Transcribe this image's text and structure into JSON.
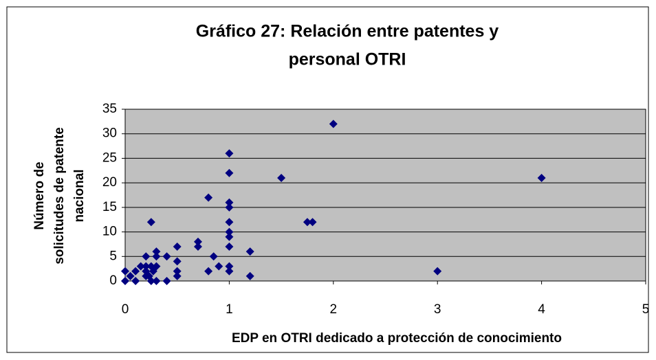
{
  "chart_data": {
    "type": "scatter",
    "title": [
      "Gráfico 27: Relación entre patentes y",
      "personal OTRI"
    ],
    "xlabel": "EDP en OTRI dedicado a protección de conocimiento",
    "ylabel": [
      "Número de",
      "solicitudes de patente",
      "nacional"
    ],
    "x": [
      0,
      0,
      0.05,
      0.1,
      0.1,
      0.15,
      0.2,
      0.2,
      0.2,
      0.2,
      0.23,
      0.25,
      0.25,
      0.25,
      0.27,
      0.3,
      0.3,
      0.3,
      0.3,
      0.4,
      0.4,
      0.5,
      0.5,
      0.5,
      0.5,
      0.7,
      0.7,
      0.8,
      0.8,
      0.85,
      0.9,
      1,
      1,
      1,
      1,
      1,
      1,
      1,
      1,
      1,
      1,
      1.2,
      1.2,
      1.5,
      1.75,
      1.8,
      2,
      3,
      4
    ],
    "values": [
      0,
      2,
      1,
      0,
      2,
      3,
      1,
      2,
      3,
      5,
      1,
      0,
      3,
      12,
      2,
      0,
      3,
      5,
      6,
      0,
      5,
      1,
      2,
      4,
      7,
      7,
      8,
      2,
      17,
      5,
      3,
      2,
      3,
      7,
      9,
      10,
      12,
      15,
      16,
      22,
      26,
      1,
      6,
      21,
      12,
      12,
      32,
      2,
      21
    ],
    "color": "#000080",
    "xlim": [
      0,
      5
    ],
    "xticks": [
      0,
      1,
      2,
      3,
      4,
      5
    ],
    "ylim": [
      0,
      35
    ],
    "yticks": [
      0,
      5,
      10,
      15,
      20,
      25,
      30,
      35
    ],
    "grid": true
  }
}
